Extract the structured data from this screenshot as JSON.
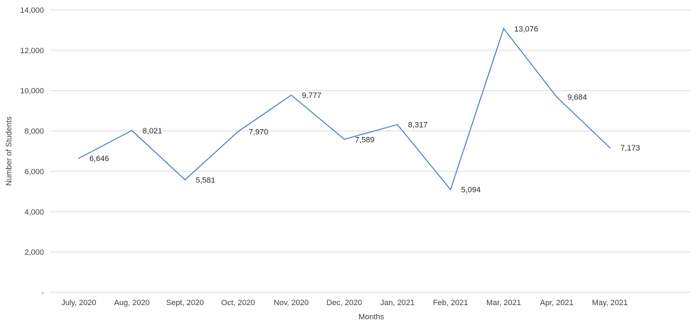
{
  "chart_data": {
    "type": "line",
    "title": "",
    "xlabel": "Months",
    "ylabel": "Number of Students",
    "categories": [
      "July, 2020",
      "Aug, 2020",
      "Sept, 2020",
      "Oct, 2020",
      "Nov, 2020",
      "Dec, 2020",
      "Jan, 2021",
      "Feb, 2021",
      "Mar, 2021",
      "Apr, 2021",
      "May, 2021"
    ],
    "series": [
      {
        "values": [
          6646,
          8021,
          5581,
          7970,
          9777,
          7589,
          8317,
          5094,
          13076,
          9684,
          7173
        ],
        "data_labels": [
          "6,646",
          "8,021",
          "5,581",
          "7,970",
          "9,777",
          "7,589",
          "8,317",
          "5,094",
          "13,076",
          "9,684",
          "7,173"
        ],
        "color": "#4472c4"
      }
    ],
    "ylim": [
      0,
      14000
    ],
    "yticks": [
      0,
      2000,
      4000,
      6000,
      8000,
      10000,
      12000,
      14000
    ],
    "ytick_labels": [
      "-",
      "2,000",
      "4,000",
      "6,000",
      "8,000",
      "10,000",
      "12,000",
      "14,000"
    ],
    "grid": true,
    "legend": "none"
  }
}
